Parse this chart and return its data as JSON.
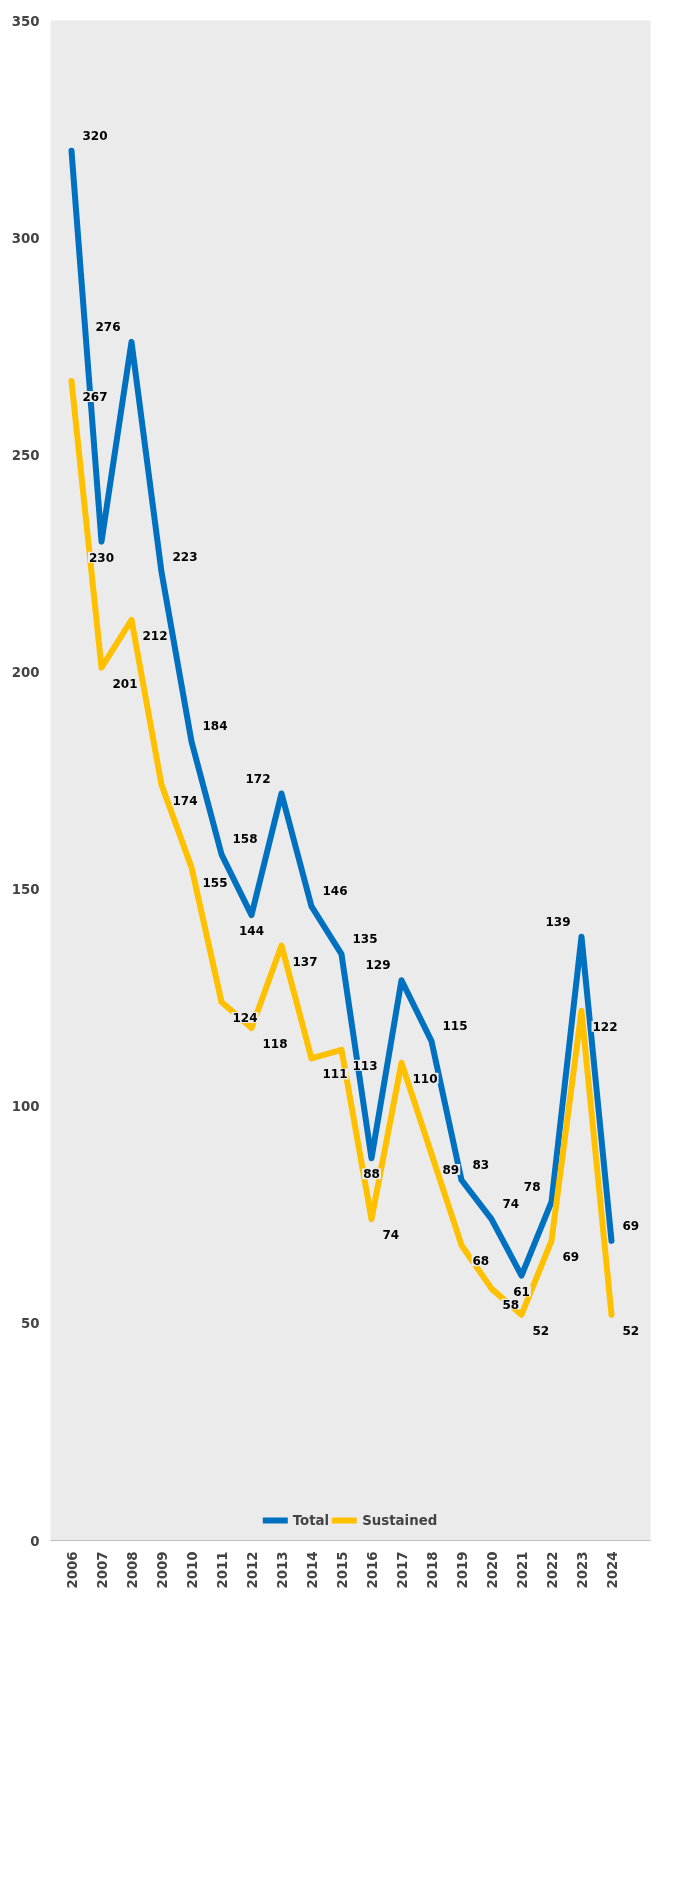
{
  "chart_data": {
    "type": "line",
    "categories": [
      "2006",
      "2007",
      "2008",
      "2009",
      "2010",
      "2011",
      "2012",
      "2013",
      "2014",
      "2015",
      "2016",
      "2017",
      "2018",
      "2019",
      "2020",
      "2021",
      "2022",
      "2023",
      "2024"
    ],
    "series": [
      {
        "name": "Total",
        "color": "#0070c0",
        "values": [
          320,
          230,
          276,
          223,
          184,
          158,
          144,
          172,
          146,
          135,
          88,
          129,
          115,
          83,
          74,
          61,
          78,
          139,
          69
        ]
      },
      {
        "name": "Sustained",
        "color": "#ffc000",
        "values": [
          267,
          201,
          212,
          174,
          155,
          124,
          118,
          137,
          111,
          113,
          74,
          110,
          89,
          68,
          58,
          52,
          69,
          122,
          52
        ]
      }
    ],
    "ylim": [
      0,
      350
    ],
    "yticks": [
      0,
      50,
      100,
      150,
      200,
      250,
      300,
      350
    ],
    "data_labels": true,
    "legend": "bottom",
    "grid": false,
    "marker": "none",
    "line_style": "solid"
  }
}
